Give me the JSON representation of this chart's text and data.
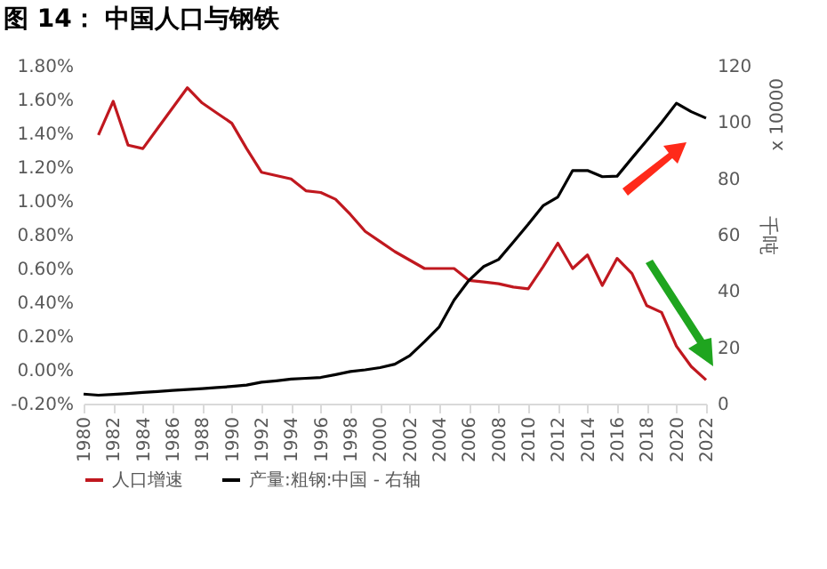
{
  "chart_data": {
    "type": "line",
    "title": "图 14： 中国人口与钢铁",
    "y2label": "千吨",
    "annotations": [
      "x 10000"
    ],
    "x": [
      1980,
      1981,
      1982,
      1983,
      1984,
      1985,
      1986,
      1987,
      1988,
      1989,
      1990,
      1991,
      1992,
      1993,
      1994,
      1995,
      1996,
      1997,
      1998,
      1999,
      2000,
      2001,
      2002,
      2003,
      2004,
      2005,
      2006,
      2007,
      2008,
      2009,
      2010,
      2011,
      2012,
      2013,
      2014,
      2015,
      2016,
      2017,
      2018,
      2019,
      2020,
      2021,
      2022
    ],
    "series": [
      {
        "name": "人口增速",
        "color": "#c0181f",
        "values": [
          null,
          1.39,
          1.59,
          1.33,
          1.31,
          1.43,
          1.55,
          1.67,
          1.58,
          1.52,
          1.46,
          1.31,
          1.17,
          1.15,
          1.13,
          1.06,
          1.05,
          1.01,
          0.92,
          0.82,
          0.76,
          0.7,
          0.65,
          0.6,
          0.6,
          0.6,
          0.53,
          0.52,
          0.51,
          0.49,
          0.48,
          0.61,
          0.75,
          0.6,
          0.68,
          0.5,
          0.66,
          0.57,
          0.38,
          0.34,
          0.14,
          0.02,
          -0.06
        ]
      },
      {
        "name": "产量:粗钢:中国 - 右轴",
        "color": "#000000",
        "axis": "y2",
        "values": [
          3.4,
          3.0,
          3.3,
          3.6,
          4.0,
          4.3,
          4.7,
          5.0,
          5.3,
          5.7,
          6.1,
          6.6,
          7.6,
          8.1,
          8.7,
          9.0,
          9.3,
          10.3,
          11.4,
          12.0,
          12.8,
          14.0,
          17.0,
          22.0,
          27.3,
          36.8,
          43.8,
          48.7,
          51.2,
          57.4,
          63.7,
          70.3,
          73.4,
          82.8,
          82.8,
          80.6,
          80.8,
          87.2,
          93.5,
          99.9,
          106.7,
          103.7,
          101.4
        ]
      }
    ],
    "xlim": [
      1980,
      2022
    ],
    "xticks": [
      1980,
      1982,
      1984,
      1986,
      1988,
      1990,
      1992,
      1994,
      1996,
      1998,
      2000,
      2002,
      2004,
      2006,
      2008,
      2010,
      2012,
      2014,
      2016,
      2018,
      2020,
      2022
    ],
    "ylim": [
      -0.2,
      1.8
    ],
    "yticks": [
      {
        "value": -0.2,
        "label": "-0.20%"
      },
      {
        "value": 0,
        "label": "0.00%"
      },
      {
        "value": 0.2,
        "label": "0.20%"
      },
      {
        "value": 0.4,
        "label": "0.40%"
      },
      {
        "value": 0.6,
        "label": "0.60%"
      },
      {
        "value": 0.8,
        "label": "0.80%"
      },
      {
        "value": 1.0,
        "label": "1.00%"
      },
      {
        "value": 1.2,
        "label": "1.20%"
      },
      {
        "value": 1.4,
        "label": "1.40%"
      },
      {
        "value": 1.6,
        "label": "1.60%"
      },
      {
        "value": 1.8,
        "label": "1.80%"
      }
    ],
    "y2lim": [
      0,
      120
    ],
    "y2ticks": [
      0,
      20,
      40,
      60,
      80,
      100,
      120
    ],
    "grid": false,
    "legend": "bottom",
    "marker": "none",
    "line_style": "solid"
  }
}
